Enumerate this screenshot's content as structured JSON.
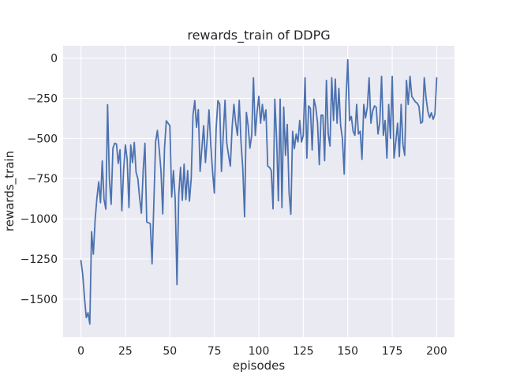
{
  "figure": {
    "title": "rewards_train of DDPG",
    "xlabel": "episodes",
    "ylabel": "rewards_train"
  },
  "colors": {
    "figure_bg": "#ffffff",
    "axes_bg": "#eaeaf2",
    "grid": "#ffffff",
    "line": "#4c72b0",
    "text": "#262626"
  },
  "chart_data": {
    "type": "line",
    "title": "rewards_train of DDPG",
    "xlabel": "episodes",
    "ylabel": "rewards_train",
    "grid": true,
    "legend": "none",
    "x_ticks": [
      0,
      25,
      50,
      75,
      100,
      125,
      150,
      175,
      200
    ],
    "y_ticks": [
      0,
      -250,
      -500,
      -750,
      -1000,
      -1250,
      -1500
    ],
    "xlim": [
      -10,
      210
    ],
    "ylim": [
      -1737,
      77
    ],
    "series": [
      {
        "name": "rewards_train",
        "color": "#4c72b0",
        "x_start": 0,
        "x_step": 1,
        "values": [
          -1260,
          -1345,
          -1490,
          -1615,
          -1585,
          -1655,
          -1080,
          -1220,
          -1005,
          -870,
          -770,
          -900,
          -640,
          -880,
          -940,
          -290,
          -750,
          -910,
          -560,
          -530,
          -535,
          -655,
          -570,
          -950,
          -700,
          -540,
          -630,
          -930,
          -540,
          -650,
          -525,
          -710,
          -750,
          -870,
          -965,
          -700,
          -530,
          -1020,
          -1025,
          -1030,
          -1280,
          -900,
          -520,
          -450,
          -565,
          -700,
          -970,
          -560,
          -390,
          -405,
          -420,
          -865,
          -700,
          -880,
          -1410,
          -850,
          -680,
          -885,
          -660,
          -880,
          -700,
          -890,
          -750,
          -355,
          -265,
          -430,
          -320,
          -705,
          -560,
          -420,
          -650,
          -500,
          -322,
          -540,
          -705,
          -840,
          -440,
          -265,
          -285,
          -705,
          -480,
          -263,
          -530,
          -605,
          -672,
          -430,
          -288,
          -405,
          -480,
          -263,
          -522,
          -690,
          -988,
          -338,
          -422,
          -560,
          -480,
          -122,
          -480,
          -338,
          -238,
          -405,
          -288,
          -388,
          -322,
          -672,
          -680,
          -700,
          -938,
          -255,
          -500,
          -888,
          -255,
          -930,
          -305,
          -605,
          -413,
          -838,
          -972,
          -455,
          -563,
          -472,
          -522,
          -388,
          -522,
          -480,
          -122,
          -622,
          -297,
          -313,
          -572,
          -255,
          -305,
          -400,
          -663,
          -355,
          -355,
          -638,
          -138,
          -472,
          -547,
          -122,
          -388,
          -130,
          -405,
          -188,
          -422,
          -500,
          -722,
          -263,
          -10,
          -388,
          -363,
          -455,
          -480,
          -288,
          -472,
          -455,
          -630,
          -288,
          -372,
          -305,
          -122,
          -405,
          -330,
          -297,
          -305,
          -472,
          -400,
          -113,
          -480,
          -388,
          -622,
          -288,
          -500,
          -113,
          -622,
          -522,
          -405,
          -613,
          -288,
          -538,
          -605,
          -138,
          -288,
          -113,
          -238,
          -255,
          -272,
          -280,
          -300,
          -405,
          -397,
          -122,
          -245,
          -330,
          -370,
          -340,
          -380,
          -350,
          -122
        ]
      }
    ]
  }
}
